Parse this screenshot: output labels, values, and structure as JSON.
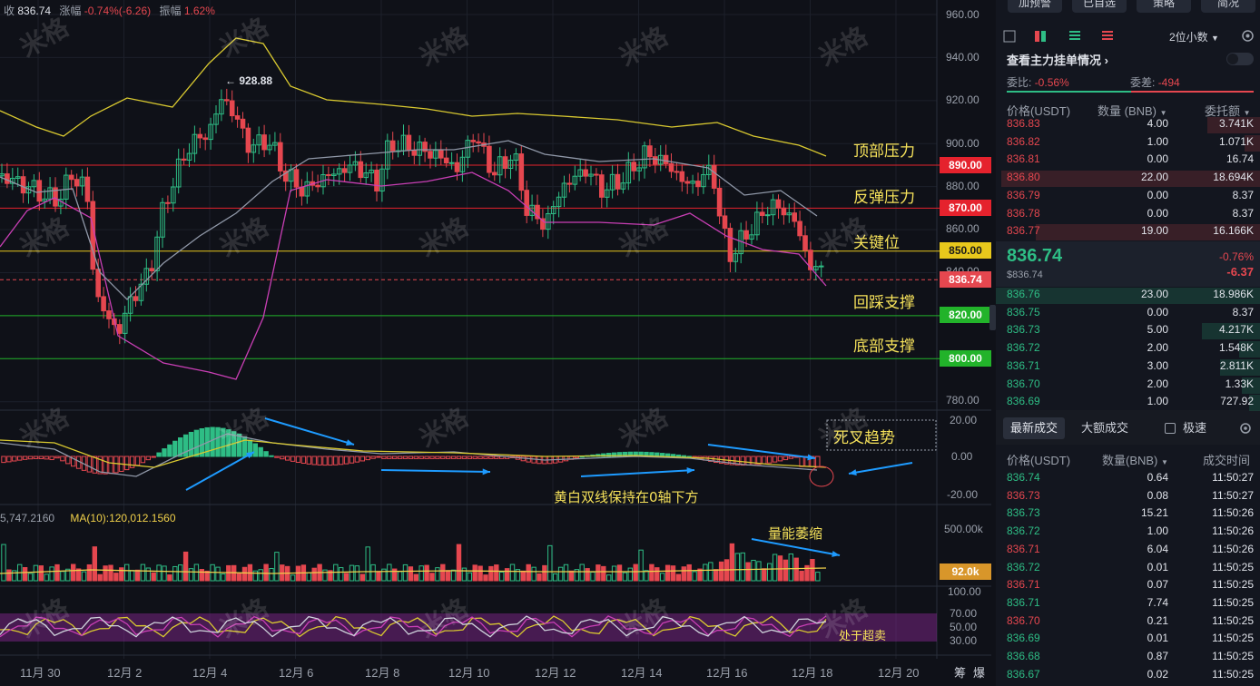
{
  "header": {
    "close_label": "收",
    "close_value": "836.74",
    "change_label": "涨幅",
    "change_value": "-0.74%(-6.26)",
    "amp_label": "振幅",
    "amp_value": "1.62%"
  },
  "price_axis": [
    "960.00",
    "940.00",
    "920.00",
    "900.00",
    "880.00",
    "860.00",
    "840.00",
    "780.00"
  ],
  "macd_axis": [
    "20.00",
    "0.00",
    "-20.00"
  ],
  "vol_axis": [
    "500.00k"
  ],
  "rsi_axis": [
    "100.00",
    "70.00",
    "50.00",
    "30.00"
  ],
  "price_tags": [
    {
      "label": "890.00",
      "color": "#e5222d"
    },
    {
      "label": "870.00",
      "color": "#e5222d"
    },
    {
      "label": "850.00",
      "color": "#e8c81c"
    },
    {
      "label": "836.74",
      "color": "#e5474f"
    },
    {
      "label": "820.00",
      "color": "#22b32a"
    },
    {
      "label": "800.00",
      "color": "#22b32a"
    },
    {
      "label": "92.0k",
      "color": "#d8962a"
    }
  ],
  "high_marker": "928.88",
  "annotations": {
    "top_resist": "顶部压力",
    "rebound_resist": "反弹压力",
    "key_level": "关键位",
    "pullback_support": "回踩支撑",
    "bottom_support": "底部支撑",
    "death_cross": "死叉趋势",
    "lines_below_zero": "黄白双线保持在0轴下方",
    "volume_shrink": "量能萎缩",
    "oversold": "处于超卖"
  },
  "volume_ma": {
    "left": "5,747.2160",
    "ma10": "MA(10):120,012.1560"
  },
  "x_labels": [
    "11月 30",
    "12月 2",
    "12月 4",
    "12月 6",
    "12月 8",
    "12月 10",
    "12月 12",
    "12月 14",
    "12月 16",
    "12月 18",
    "12月 20"
  ],
  "x_corner": [
    "筹",
    "爆"
  ],
  "watermark": "米格",
  "sidebar": {
    "top_buttons": [
      "加预警",
      "已自选",
      "策略",
      "简况"
    ],
    "precision": "2位小数",
    "view_main_orders": "查看主力挂单情况",
    "ratio_label": "委比:",
    "ratio_value": "-0.56%",
    "diff_label": "委差:",
    "diff_value": "-494",
    "book_headers": [
      "价格(USDT)",
      "数量 (BNB)",
      "委托额"
    ],
    "asks": [
      {
        "price": "836.83",
        "qty": "4.00",
        "total": "3.741K",
        "fill": 0.2
      },
      {
        "price": "836.82",
        "qty": "1.00",
        "total": "1.071K",
        "fill": 0.06
      },
      {
        "price": "836.81",
        "qty": "0.00",
        "total": "16.74",
        "fill": 0.0
      },
      {
        "price": "836.80",
        "qty": "22.00",
        "total": "18.694K",
        "fill": 0.98
      },
      {
        "price": "836.79",
        "qty": "0.00",
        "total": "8.37",
        "fill": 0.0
      },
      {
        "price": "836.78",
        "qty": "0.00",
        "total": "8.37",
        "fill": 0.0
      },
      {
        "price": "836.77",
        "qty": "19.00",
        "total": "16.166K",
        "fill": 0.85
      }
    ],
    "last_price": "836.74",
    "last_price_usd": "$836.74",
    "last_change_pct": "-0.76%",
    "last_change": "-6.37",
    "bids": [
      {
        "price": "836.76",
        "qty": "23.00",
        "total": "18.986K",
        "fill": 1.0
      },
      {
        "price": "836.75",
        "qty": "0.00",
        "total": "8.37",
        "fill": 0.0
      },
      {
        "price": "836.73",
        "qty": "5.00",
        "total": "4.217K",
        "fill": 0.22
      },
      {
        "price": "836.72",
        "qty": "2.00",
        "total": "1.548K",
        "fill": 0.08
      },
      {
        "price": "836.71",
        "qty": "3.00",
        "total": "2.811K",
        "fill": 0.15
      },
      {
        "price": "836.70",
        "qty": "2.00",
        "total": "1.33K",
        "fill": 0.07
      },
      {
        "price": "836.69",
        "qty": "1.00",
        "total": "727.92",
        "fill": 0.04
      }
    ],
    "trade_tabs": [
      "最新成交",
      "大额成交"
    ],
    "fast_label": "极速",
    "trade_headers": [
      "价格(USDT)",
      "数量(BNB)",
      "成交时间"
    ],
    "trades": [
      {
        "price": "836.74",
        "qty": "0.64",
        "time": "11:50:27",
        "side": "buy"
      },
      {
        "price": "836.73",
        "qty": "0.08",
        "time": "11:50:27",
        "side": "sell"
      },
      {
        "price": "836.73",
        "qty": "15.21",
        "time": "11:50:26",
        "side": "buy"
      },
      {
        "price": "836.72",
        "qty": "1.00",
        "time": "11:50:26",
        "side": "buy"
      },
      {
        "price": "836.71",
        "qty": "6.04",
        "time": "11:50:26",
        "side": "sell"
      },
      {
        "price": "836.72",
        "qty": "0.01",
        "time": "11:50:25",
        "side": "buy"
      },
      {
        "price": "836.71",
        "qty": "0.07",
        "time": "11:50:25",
        "side": "sell"
      },
      {
        "price": "836.71",
        "qty": "7.74",
        "time": "11:50:25",
        "side": "buy"
      },
      {
        "price": "836.70",
        "qty": "0.21",
        "time": "11:50:25",
        "side": "sell"
      },
      {
        "price": "836.69",
        "qty": "0.01",
        "time": "11:50:25",
        "side": "buy"
      },
      {
        "price": "836.68",
        "qty": "0.87",
        "time": "11:50:25",
        "side": "buy"
      },
      {
        "price": "836.67",
        "qty": "0.02",
        "time": "11:50:25",
        "side": "buy"
      }
    ]
  },
  "colors": {
    "up": "#2ebd85",
    "down": "#e5474f",
    "bg": "#0f1118",
    "annotation": "#f5e15a",
    "arrow": "#1e9bff"
  }
}
